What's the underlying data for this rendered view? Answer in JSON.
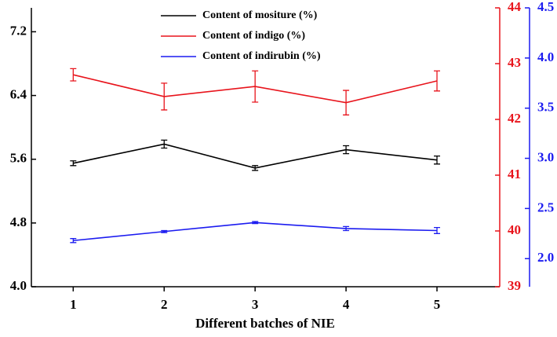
{
  "chart_data": {
    "type": "line",
    "x_label": "Different batches of NIE",
    "x": [
      1,
      2,
      3,
      4,
      5
    ],
    "xlim": [
      0.54,
      5.69
    ],
    "xticks": [
      1,
      2,
      3,
      4,
      5
    ],
    "ylim": [
      4.0,
      7.5
    ],
    "yticks": [
      {
        "value": 4.0,
        "label": "4.0"
      },
      {
        "value": 4.8,
        "label": "4.8"
      },
      {
        "value": 5.6,
        "label": "5.6"
      },
      {
        "value": 6.4,
        "label": "6.4"
      },
      {
        "value": 7.2,
        "label": "7.2"
      }
    ],
    "y2lim": [
      39,
      44
    ],
    "y2ticks": [
      39,
      40,
      41,
      42,
      43,
      44
    ],
    "y3lim": [
      1.72,
      4.5
    ],
    "y3ticks": [
      {
        "value": 2.0,
        "label": "2.0"
      },
      {
        "value": 2.5,
        "label": "2.5"
      },
      {
        "value": 3.0,
        "label": "3.0"
      },
      {
        "value": 3.5,
        "label": "3.5"
      },
      {
        "value": 4.0,
        "label": "4.0"
      },
      {
        "value": 4.5,
        "label": "4.5"
      }
    ],
    "series": [
      {
        "name": "Content of mositure (%)",
        "color": "#000000",
        "axis": "y",
        "values": [
          5.55,
          5.79,
          5.49,
          5.72,
          5.59
        ],
        "errors": [
          0.03,
          0.05,
          0.03,
          0.05,
          0.05
        ]
      },
      {
        "name": "Content of indigo (%)",
        "color": "#e8141c",
        "axis": "y2",
        "values": [
          42.8,
          42.41,
          42.59,
          42.3,
          42.69
        ],
        "errors": [
          0.11,
          0.24,
          0.28,
          0.22,
          0.18
        ]
      },
      {
        "name": "Content of indirubin (%)",
        "color": "#1c1cf0",
        "axis": "y3",
        "values": [
          2.18,
          2.27,
          2.36,
          2.3,
          2.28
        ],
        "errors": [
          0.02,
          0.01,
          0.01,
          0.02,
          0.03
        ]
      }
    ]
  }
}
